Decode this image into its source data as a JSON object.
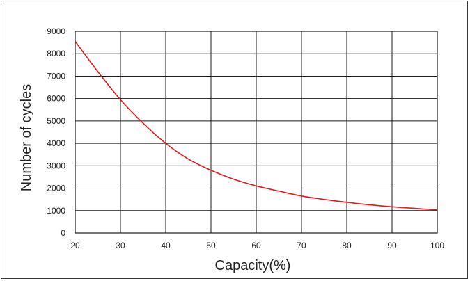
{
  "chart_data": {
    "type": "line",
    "title": "",
    "xlabel": "Capacity(%)",
    "ylabel": "Number of cycles",
    "xlim": [
      20,
      100
    ],
    "ylim": [
      0,
      9000
    ],
    "x_ticks": [
      20,
      30,
      40,
      50,
      60,
      70,
      80,
      90,
      100
    ],
    "y_ticks": [
      0,
      1000,
      2000,
      3000,
      4000,
      5000,
      6000,
      7000,
      8000,
      9000
    ],
    "grid": true,
    "legend": "none",
    "series": [
      {
        "color": "#e0191f",
        "x": [
          20,
          25,
          30,
          35,
          40,
          45,
          50,
          55,
          60,
          65,
          70,
          75,
          80,
          85,
          90,
          95,
          100
        ],
        "y": [
          8550,
          7200,
          5950,
          4900,
          4000,
          3300,
          2800,
          2400,
          2100,
          1870,
          1650,
          1500,
          1370,
          1260,
          1170,
          1100,
          1030
        ]
      }
    ]
  }
}
